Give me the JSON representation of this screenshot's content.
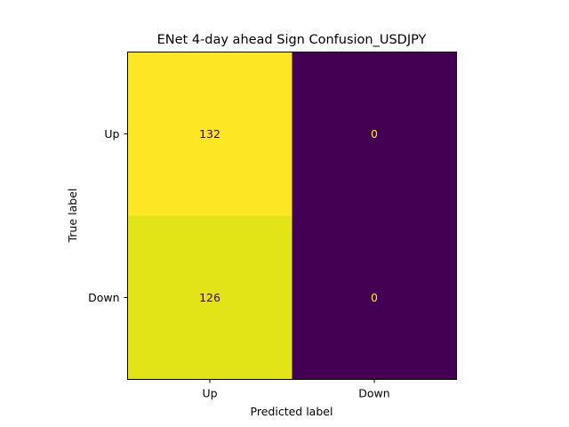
{
  "chart_data": {
    "type": "heatmap",
    "title": "ENet 4-day ahead Sign Confusion_USDJPY",
    "xlabel": "Predicted label",
    "ylabel": "True label",
    "x_categories": [
      "Up",
      "Down"
    ],
    "y_categories": [
      "Up",
      "Down"
    ],
    "matrix": [
      [
        132,
        0
      ],
      [
        126,
        0
      ]
    ],
    "colormap": "viridis",
    "colorbar": false,
    "grid": false,
    "cell_colors": [
      [
        "#fde725",
        "#440154"
      ],
      [
        "#e2e418",
        "#440154"
      ]
    ],
    "cell_text_colors": [
      [
        "#440154",
        "#fde725"
      ],
      [
        "#440154",
        "#fde725"
      ]
    ]
  }
}
